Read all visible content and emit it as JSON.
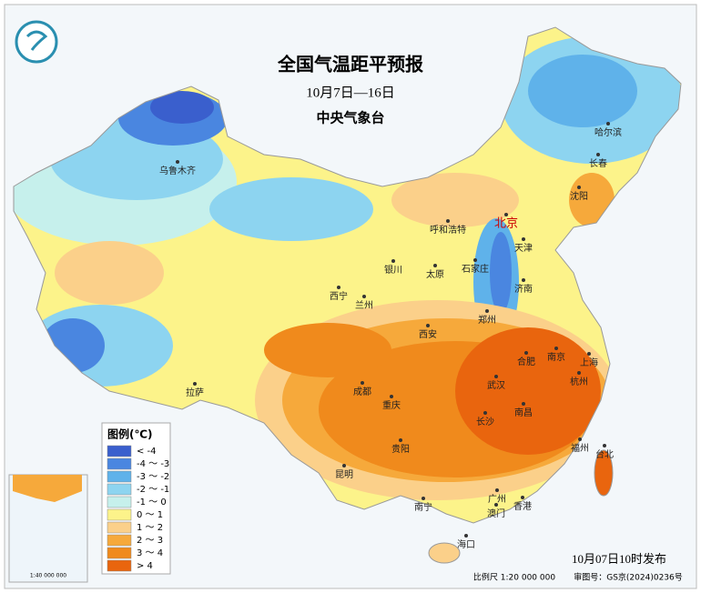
{
  "header": {
    "title": "全国气温距平预报",
    "subtitle": "10月7日—16日",
    "issuer": "中央气象台"
  },
  "legend": {
    "title": "图例(℃)",
    "items": [
      {
        "label": "< -4",
        "color": "#3a5fcd"
      },
      {
        "label": "-4 ～ -3",
        "color": "#4a86e0"
      },
      {
        "label": "-3 ～ -2",
        "color": "#5fb2ea"
      },
      {
        "label": "-2 ～ -1",
        "color": "#8dd4f0"
      },
      {
        "label": "-1 ～ 0",
        "color": "#c6f0ec"
      },
      {
        "label": "0 ～ 1",
        "color": "#fcf38a"
      },
      {
        "label": "1 ～ 2",
        "color": "#fbd08a"
      },
      {
        "label": "2 ～ 3",
        "color": "#f6a93b"
      },
      {
        "label": "3 ～ 4",
        "color": "#f08a1c"
      },
      {
        "label": "> 4",
        "color": "#e9650e"
      }
    ]
  },
  "cities": [
    "乌鲁木齐",
    "哈尔滨",
    "长春",
    "沈阳",
    "北京",
    "天津",
    "呼和浩特",
    "石家庄",
    "太原",
    "济南",
    "银川",
    "西宁",
    "兰州",
    "郑州",
    "西安",
    "合肥",
    "南京",
    "上海",
    "杭州",
    "武汉",
    "成都",
    "重庆",
    "拉萨",
    "长沙",
    "南昌",
    "贵阳",
    "福州",
    "台北",
    "昆明",
    "南宁",
    "广州",
    "澳门",
    "香港",
    "海口"
  ],
  "footer": {
    "publish": "10月07日10时发布",
    "scale": "比例尺 1:20 000 000",
    "review": "审图号：GS京(2024)0236号"
  },
  "inset": {
    "scale": "1:40 000 000"
  }
}
